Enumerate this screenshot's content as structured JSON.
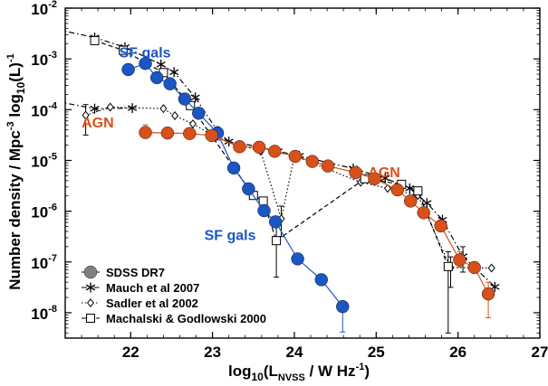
{
  "chart_data": {
    "type": "scatter",
    "xlabel": "log10(LNVSS / W Hz-1)",
    "ylabel": "Number density / Mpc-3 log10(L)-1",
    "xlim": [
      21.2,
      27.0
    ],
    "ylim": [
      -8.5,
      -2.0
    ],
    "yscale": "log",
    "x_ticks": [
      "22",
      "23",
      "24",
      "25",
      "26",
      "27"
    ],
    "y_ticks": [
      {
        "value": -2,
        "base": "10",
        "exp": "-2"
      },
      {
        "value": -3,
        "base": "10",
        "exp": "-3"
      },
      {
        "value": -4,
        "base": "10",
        "exp": "-4"
      },
      {
        "value": -5,
        "base": "10",
        "exp": "-5"
      },
      {
        "value": -6,
        "base": "10",
        "exp": "-6"
      },
      {
        "value": -7,
        "base": "10",
        "exp": "-7"
      },
      {
        "value": -8,
        "base": "10",
        "exp": "-8"
      }
    ],
    "grid": false,
    "legend_position": "bottom-left",
    "annotations": [
      {
        "text": "SF gals",
        "x": 21.86,
        "y": -2.97,
        "color": "#1a56c4"
      },
      {
        "text": "AGN",
        "x": 21.4,
        "y": -4.35,
        "color": "#d8501a"
      },
      {
        "text": "AGN",
        "x": 24.9,
        "y": -5.33,
        "color": "#d8501a"
      },
      {
        "text": "SF gals",
        "x": 22.9,
        "y": -6.57,
        "color": "#1a56c4"
      }
    ],
    "series": [
      {
        "name": "SDSS DR7",
        "group": "SF",
        "marker": "filled-circle",
        "color": "#1a56c4",
        "points": [
          {
            "x": 21.97,
            "y": -3.21
          },
          {
            "x": 22.18,
            "y": -3.09
          },
          {
            "x": 22.32,
            "y": -3.37
          },
          {
            "x": 22.48,
            "y": -3.49
          },
          {
            "x": 22.66,
            "y": -3.79
          },
          {
            "x": 22.83,
            "y": -4.07
          },
          {
            "x": 23.06,
            "y": -4.46,
            "err_lo": -4.6,
            "err_hi": -4.34
          },
          {
            "x": 23.26,
            "y": -5.15
          },
          {
            "x": 23.44,
            "y": -5.56
          },
          {
            "x": 23.63,
            "y": -5.99
          },
          {
            "x": 23.77,
            "y": -6.21
          },
          {
            "x": 24.04,
            "y": -6.94
          },
          {
            "x": 24.33,
            "y": -7.35
          },
          {
            "x": 24.59,
            "y": -7.88,
            "err_lo": -8.38,
            "err_hi": -7.8
          }
        ]
      },
      {
        "name": "SDSS DR7",
        "group": "AGN",
        "marker": "filled-circle",
        "color": "#d8501a",
        "points": [
          {
            "x": 22.18,
            "y": -4.45,
            "err_lo": -4.55,
            "err_hi": -4.3
          },
          {
            "x": 22.45,
            "y": -4.46
          },
          {
            "x": 22.72,
            "y": -4.47
          },
          {
            "x": 22.99,
            "y": -4.51
          },
          {
            "x": 23.33,
            "y": -4.73
          },
          {
            "x": 23.57,
            "y": -4.74
          },
          {
            "x": 23.76,
            "y": -4.82
          },
          {
            "x": 24.01,
            "y": -4.92
          },
          {
            "x": 24.22,
            "y": -5.02
          },
          {
            "x": 24.41,
            "y": -5.11
          },
          {
            "x": 24.75,
            "y": -5.24
          },
          {
            "x": 24.98,
            "y": -5.36
          },
          {
            "x": 25.26,
            "y": -5.58
          },
          {
            "x": 25.42,
            "y": -5.8
          },
          {
            "x": 25.58,
            "y": -6.03
          },
          {
            "x": 25.79,
            "y": -6.29
          },
          {
            "x": 26.02,
            "y": -6.96,
            "err_lo": -7.1,
            "err_hi": -6.8
          },
          {
            "x": 26.2,
            "y": -7.11
          },
          {
            "x": 26.37,
            "y": -7.63,
            "err_lo": -8.1,
            "err_hi": -7.4
          }
        ]
      },
      {
        "name": "Mauch et al 2007",
        "marker": "asterisk",
        "color": "#000000",
        "linestyle": "dashdot",
        "points": [
          {
            "x": 21.1,
            "y": -2.42
          },
          {
            "x": 21.56,
            "y": -2.58
          },
          {
            "x": 21.93,
            "y": -2.77
          },
          {
            "x": 22.37,
            "y": -3.11
          },
          {
            "x": 22.53,
            "y": -3.26
          },
          {
            "x": 22.79,
            "y": -3.76
          },
          {
            "x": 23.06,
            "y": -4.42
          },
          {
            "x": 23.2,
            "y": -4.63
          },
          {
            "x": 23.58,
            "y": -4.73
          },
          {
            "x": 23.8,
            "y": -4.82
          },
          {
            "x": 24.06,
            "y": -4.91
          },
          {
            "x": 24.72,
            "y": -5.16
          },
          {
            "x": 25.11,
            "y": -5.35
          },
          {
            "x": 25.41,
            "y": -5.55
          },
          {
            "x": 25.62,
            "y": -5.84
          },
          {
            "x": 25.81,
            "y": -6.17
          },
          {
            "x": 26.06,
            "y": -6.89,
            "err_lo": -7.2,
            "err_hi": -6.7
          },
          {
            "x": 26.45,
            "y": -7.49
          }
        ],
        "points_low": [
          {
            "x": 21.1,
            "y": -3.84
          },
          {
            "x": 21.56,
            "y": -3.98
          },
          {
            "x": 22.02,
            "y": -3.97
          }
        ]
      },
      {
        "name": "Sadler et al 2002",
        "marker": "open-diamond",
        "color": "#000000",
        "linestyle": "dotted",
        "points": [
          {
            "x": 21.45,
            "y": -4.11,
            "err_lo": -4.5,
            "err_hi": -3.9
          },
          {
            "x": 21.75,
            "y": -3.95
          },
          {
            "x": 22.4,
            "y": -3.98
          },
          {
            "x": 22.54,
            "y": -4.12
          },
          {
            "x": 22.76,
            "y": -4.28
          },
          {
            "x": 23.04,
            "y": -4.54
          },
          {
            "x": 23.59,
            "y": -4.82
          },
          {
            "x": 23.84,
            "y": -6.15,
            "err_lo": -6.5,
            "err_hi": -5.9
          },
          {
            "x": 24.0,
            "y": -4.91
          },
          {
            "x": 24.81,
            "y": -5.43
          },
          {
            "x": 25.14,
            "y": -5.55
          },
          {
            "x": 25.51,
            "y": -5.69
          },
          {
            "x": 25.91,
            "y": -7.11,
            "err_lo": -7.5,
            "err_hi": -6.9
          },
          {
            "x": 26.41,
            "y": -7.12
          }
        ]
      },
      {
        "name": "Machalski & Godlowski 2000",
        "marker": "open-square",
        "color": "#000000",
        "linestyle": "dashed",
        "points": [
          {
            "x": 21.56,
            "y": -2.64
          },
          {
            "x": 21.91,
            "y": -2.83
          },
          {
            "x": 22.4,
            "y": -3.27
          },
          {
            "x": 22.73,
            "y": -3.92
          },
          {
            "x": 23.5,
            "y": -5.69
          },
          {
            "x": 23.62,
            "y": -5.8
          },
          {
            "x": 23.78,
            "y": -6.58,
            "err_lo": -7.3,
            "err_hi": -6.3
          },
          {
            "x": 24.86,
            "y": -5.36
          },
          {
            "x": 25.31,
            "y": -5.47
          },
          {
            "x": 25.51,
            "y": -5.6
          },
          {
            "x": 25.88,
            "y": -7.09,
            "err_lo": -8.4,
            "err_hi": -6.8
          }
        ]
      }
    ],
    "legend": [
      {
        "label": "SDSS DR7",
        "marker": "filled-circle",
        "color": "#7f7f7f"
      },
      {
        "label": "Mauch et al 2007",
        "marker": "asterisk",
        "color": "#000000"
      },
      {
        "label": "Sadler et al 2002",
        "marker": "open-diamond",
        "color": "#000000"
      },
      {
        "label": "Machalski & Godlowski 2000",
        "marker": "open-square",
        "color": "#000000"
      }
    ]
  }
}
